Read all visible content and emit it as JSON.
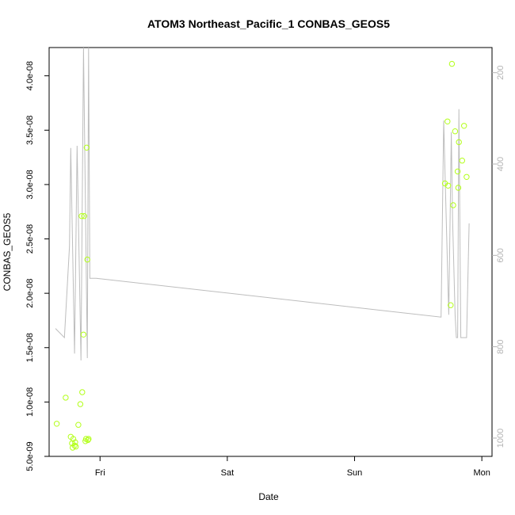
{
  "chart_data": {
    "type": "scatter",
    "title": "ATOM3 Northeast_Pacific_1 CONBAS_GEOS5",
    "xlabel": "Date",
    "ylabel": "CONBAS_GEOS5",
    "x_unit": "days since Thu 00:00",
    "xlim": [
      0.6,
      4.08
    ],
    "x_ticks": [
      {
        "value": 1,
        "label": "Fri"
      },
      {
        "value": 2,
        "label": "Sat"
      },
      {
        "value": 3,
        "label": "Sun"
      },
      {
        "value": 4,
        "label": "Mon"
      }
    ],
    "ylim": [
      5e-09,
      4.26e-08
    ],
    "y_ticks": [
      {
        "value": 5e-09,
        "label": "5.0e-09"
      },
      {
        "value": 1e-08,
        "label": "1.0e-08"
      },
      {
        "value": 1.5e-08,
        "label": "1.5e-08"
      },
      {
        "value": 2e-08,
        "label": "2.0e-08"
      },
      {
        "value": 2.5e-08,
        "label": "2.5e-08"
      },
      {
        "value": 3e-08,
        "label": "3.0e-08"
      },
      {
        "value": 3.5e-08,
        "label": "3.5e-08"
      },
      {
        "value": 4e-08,
        "label": "4.0e-08"
      }
    ],
    "y2lim": [
      1040,
      145
    ],
    "y2_ticks": [
      {
        "value": 200,
        "label": "200"
      },
      {
        "value": 400,
        "label": "400"
      },
      {
        "value": 600,
        "label": "600"
      },
      {
        "value": 800,
        "label": "800"
      },
      {
        "value": 1000,
        "label": "1000"
      }
    ],
    "grid": false,
    "legend": "none",
    "colors": {
      "points": "#b3ff1a",
      "line": "#bdbdbd",
      "axis": "#000000",
      "right_axis": "#b3b3b3"
    },
    "series": [
      {
        "kind": "points",
        "axis": "left",
        "x": [
          0.66,
          0.73,
          0.77,
          0.78,
          0.785,
          0.79,
          0.8,
          0.805,
          0.81,
          0.83,
          0.845,
          0.855,
          0.86,
          0.87,
          0.875,
          0.885,
          0.89,
          0.895,
          0.9,
          0.905,
          0.91,
          3.71,
          3.73,
          3.735,
          3.755,
          3.765,
          3.775,
          3.79,
          3.81,
          3.815,
          3.82,
          3.845,
          3.86,
          3.88
        ],
        "y": [
          8e-09,
          1.04e-08,
          6.8e-09,
          6.2e-09,
          5.8e-09,
          6.6e-09,
          6e-09,
          6.3e-09,
          5.9e-09,
          7.9e-09,
          9.8e-09,
          2.71e-08,
          1.09e-08,
          1.62e-08,
          2.71e-08,
          6.4e-09,
          6.6e-09,
          3.34e-08,
          2.31e-08,
          6.5e-09,
          6.6e-09,
          3.01e-08,
          3.58e-08,
          2.99e-08,
          1.89e-08,
          4.11e-08,
          2.81e-08,
          3.49e-08,
          3.12e-08,
          2.97e-08,
          3.39e-08,
          3.22e-08,
          3.54e-08,
          3.07e-08
        ]
      },
      {
        "kind": "line",
        "axis": "right",
        "x": [
          0.65,
          0.72,
          0.76,
          0.77,
          0.8,
          0.82,
          0.85,
          0.87,
          0.9,
          0.91,
          0.92,
          0.97,
          3.68,
          3.7,
          3.72,
          3.74,
          3.76,
          3.77,
          3.79,
          3.8,
          3.81,
          3.82,
          3.835,
          3.86,
          3.87,
          3.88,
          3.9
        ],
        "y": [
          760,
          780,
          580,
          365,
          815,
          360,
          830,
          145,
          825,
          145,
          650,
          650,
          735,
          305,
          520,
          730,
          330,
          520,
          730,
          780,
          780,
          280,
          780,
          780,
          780,
          780,
          530
        ]
      }
    ]
  }
}
